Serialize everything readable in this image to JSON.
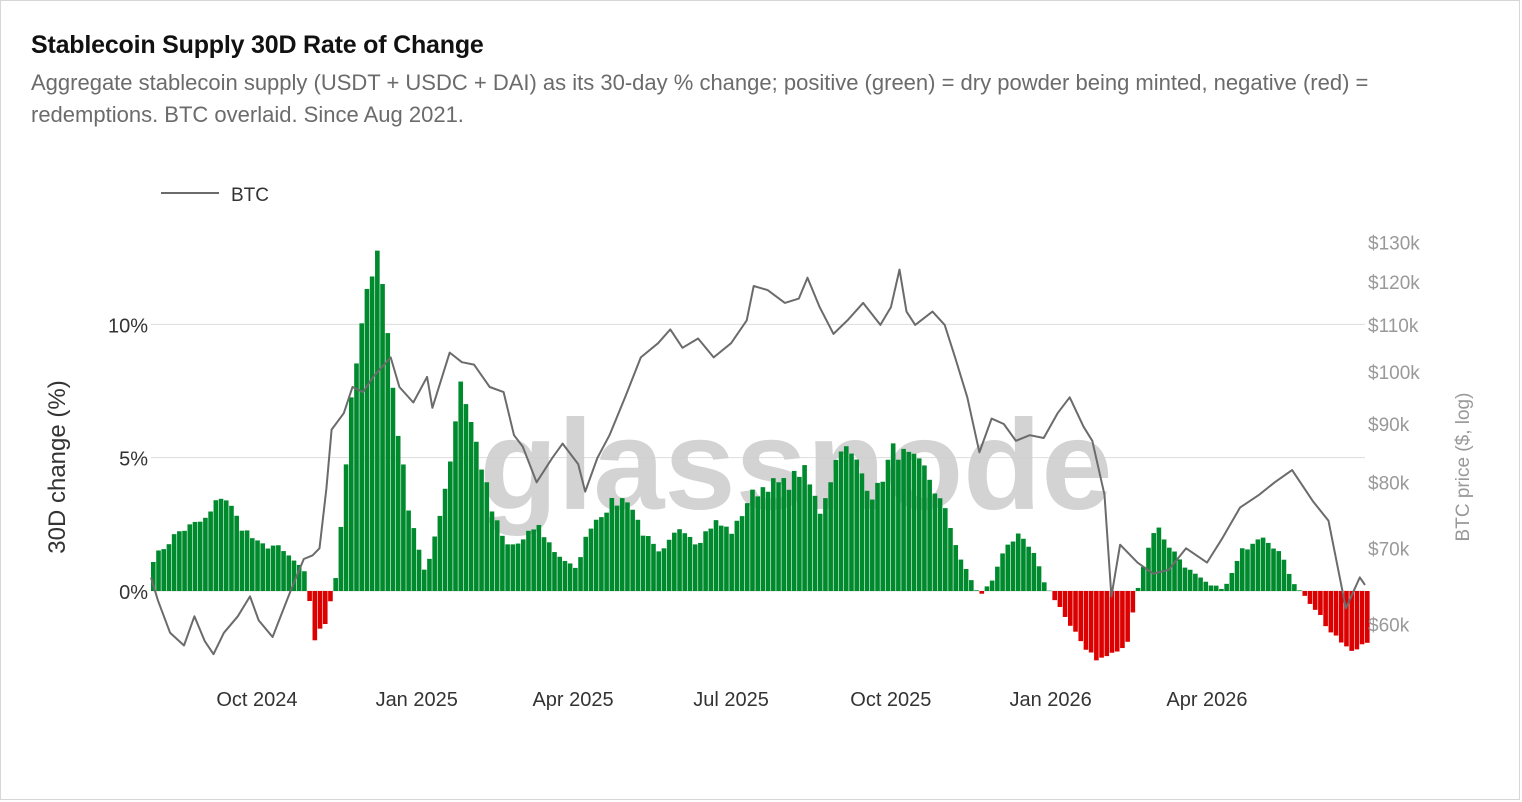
{
  "header": {
    "title": "Stablecoin Supply 30D Rate of Change",
    "subtitle": "Aggregate stablecoin supply (USDT + USDC + DAI) as its 30-day % change; positive (green) = dry powder being minted, negative (red) = redemptions. BTC overlaid. Since Aug 2021."
  },
  "watermark": "glassnode",
  "colors": {
    "positive": "#008a2e",
    "negative": "#dd0000",
    "btc_line": "#6b6b6b",
    "grid": "#dddddd",
    "axis_text": "#333333",
    "right_axis_text": "#999999"
  },
  "chart_data": {
    "type": "bar",
    "legend": {
      "position": "top-left",
      "entries": [
        "BTC"
      ]
    },
    "x_range": [
      "2024-08-01",
      "2026-07-01"
    ],
    "x_ticks": [
      {
        "label": "Oct 2024",
        "date": "2024-10-01"
      },
      {
        "label": "Jan 2025",
        "date": "2025-01-01"
      },
      {
        "label": "Apr 2025",
        "date": "2025-04-01"
      },
      {
        "label": "Jul 2025",
        "date": "2025-07-01"
      },
      {
        "label": "Oct 2025",
        "date": "2025-10-01"
      },
      {
        "label": "Jan 2026",
        "date": "2026-01-01"
      },
      {
        "label": "Apr 2026",
        "date": "2026-04-01"
      }
    ],
    "y_left": {
      "label": "30D change (%)",
      "ylim": [
        -2.7,
        13.5
      ],
      "ticks": [
        {
          "label": "0%",
          "value": 0
        },
        {
          "label": "5%",
          "value": 5
        },
        {
          "label": "10%",
          "value": 10
        }
      ],
      "grid": true
    },
    "y_right": {
      "label": "BTC price ($, log)",
      "scale": "log",
      "ylim": [
        55500,
        133000
      ],
      "ticks": [
        {
          "label": "$60k",
          "value": 60000
        },
        {
          "label": "$70k",
          "value": 70000
        },
        {
          "label": "$80k",
          "value": 80000
        },
        {
          "label": "$90k",
          "value": 90000
        },
        {
          "label": "$100k",
          "value": 100000
        },
        {
          "label": "$110k",
          "value": 110000
        },
        {
          "label": "$120k",
          "value": 120000
        },
        {
          "label": "$130k",
          "value": 130000
        }
      ]
    },
    "series": [
      {
        "name": "30D change (%)",
        "type": "bar",
        "x": [
          "2024-08-01",
          "2024-08-15",
          "2024-09-01",
          "2024-09-10",
          "2024-09-20",
          "2024-10-01",
          "2024-10-10",
          "2024-10-20",
          "2024-10-28",
          "2024-11-02",
          "2024-11-08",
          "2024-11-15",
          "2024-11-22",
          "2024-11-28",
          "2024-12-03",
          "2024-12-08",
          "2024-12-12",
          "2024-12-18",
          "2024-12-25",
          "2025-01-05",
          "2025-01-18",
          "2025-01-25",
          "2025-02-05",
          "2025-02-12",
          "2025-02-20",
          "2025-03-01",
          "2025-03-10",
          "2025-03-20",
          "2025-04-01",
          "2025-04-10",
          "2025-04-20",
          "2025-05-01",
          "2025-05-10",
          "2025-05-20",
          "2025-06-01",
          "2025-06-10",
          "2025-06-20",
          "2025-07-01",
          "2025-07-10",
          "2025-07-20",
          "2025-08-01",
          "2025-08-10",
          "2025-08-20",
          "2025-09-01",
          "2025-09-10",
          "2025-09-20",
          "2025-10-01",
          "2025-10-10",
          "2025-10-20",
          "2025-11-01",
          "2025-11-10",
          "2025-11-20",
          "2025-11-28",
          "2025-12-05",
          "2025-12-12",
          "2025-12-20",
          "2025-12-28",
          "2026-01-05",
          "2026-01-12",
          "2026-01-20",
          "2026-01-28",
          "2026-02-05",
          "2026-02-12",
          "2026-02-20",
          "2026-03-01",
          "2026-03-10",
          "2026-03-20",
          "2026-04-01",
          "2026-04-10",
          "2026-04-20",
          "2026-05-01",
          "2026-05-10",
          "2026-05-20",
          "2026-06-01",
          "2026-06-10",
          "2026-06-20",
          "2026-07-01"
        ],
        "values": [
          1.2,
          2.2,
          2.7,
          3.7,
          2.5,
          1.7,
          1.7,
          1.2,
          0.6,
          -1.8,
          -1.2,
          0.8,
          6.5,
          9.5,
          11.5,
          12.9,
          11.0,
          7.0,
          3.5,
          0.5,
          4.5,
          7.9,
          5.0,
          3.0,
          1.7,
          1.8,
          2.5,
          1.5,
          0.8,
          2.5,
          3.2,
          3.5,
          2.2,
          1.3,
          2.5,
          1.8,
          2.6,
          2.2,
          3.5,
          4.0,
          4.0,
          4.6,
          3.0,
          5.5,
          4.8,
          3.5,
          5.3,
          5.0,
          4.5,
          2.8,
          1.0,
          -0.2,
          0.5,
          1.8,
          2.0,
          1.5,
          0.2,
          -0.6,
          -1.5,
          -2.1,
          -2.6,
          -2.3,
          -2.2,
          0.5,
          2.5,
          1.6,
          0.8,
          0.2,
          0.1,
          1.5,
          2.2,
          1.6,
          0.3,
          -0.7,
          -1.6,
          -2.1,
          -2.1
        ]
      },
      {
        "name": "BTC",
        "type": "line",
        "x": [
          "2024-08-01",
          "2024-08-05",
          "2024-08-12",
          "2024-08-20",
          "2024-08-26",
          "2024-09-01",
          "2024-09-06",
          "2024-09-12",
          "2024-09-20",
          "2024-09-27",
          "2024-10-02",
          "2024-10-10",
          "2024-10-20",
          "2024-10-28",
          "2024-11-02",
          "2024-11-06",
          "2024-11-10",
          "2024-11-13",
          "2024-11-20",
          "2024-11-25",
          "2024-12-01",
          "2024-12-07",
          "2024-12-12",
          "2024-12-17",
          "2024-12-22",
          "2024-12-30",
          "2025-01-07",
          "2025-01-10",
          "2025-01-20",
          "2025-01-27",
          "2025-02-03",
          "2025-02-12",
          "2025-02-20",
          "2025-02-26",
          "2025-03-03",
          "2025-03-11",
          "2025-03-20",
          "2025-03-26",
          "2025-04-04",
          "2025-04-08",
          "2025-04-15",
          "2025-04-22",
          "2025-05-01",
          "2025-05-10",
          "2025-05-20",
          "2025-05-27",
          "2025-06-03",
          "2025-06-12",
          "2025-06-21",
          "2025-07-01",
          "2025-07-10",
          "2025-07-14",
          "2025-07-22",
          "2025-08-01",
          "2025-08-09",
          "2025-08-14",
          "2025-08-21",
          "2025-08-29",
          "2025-09-06",
          "2025-09-15",
          "2025-09-25",
          "2025-10-01",
          "2025-10-06",
          "2025-10-10",
          "2025-10-15",
          "2025-10-25",
          "2025-11-01",
          "2025-11-07",
          "2025-11-14",
          "2025-11-21",
          "2025-11-28",
          "2025-12-05",
          "2025-12-12",
          "2025-12-20",
          "2025-12-28",
          "2026-01-05",
          "2026-01-12",
          "2026-01-20",
          "2026-01-25",
          "2026-02-01",
          "2026-02-05",
          "2026-02-10",
          "2026-02-20",
          "2026-03-01",
          "2026-03-10",
          "2026-03-20",
          "2026-04-01",
          "2026-04-10",
          "2026-04-20",
          "2026-05-01",
          "2026-05-10",
          "2026-05-20",
          "2026-06-01",
          "2026-06-10",
          "2026-06-20",
          "2026-06-28",
          "2026-07-01"
        ],
        "values": [
          66000,
          63000,
          59000,
          57500,
          61000,
          58000,
          56500,
          59000,
          61000,
          63500,
          60500,
          58500,
          64000,
          68500,
          69000,
          70000,
          79000,
          89000,
          92000,
          97000,
          96000,
          99000,
          101000,
          103000,
          97000,
          94000,
          99000,
          93000,
          104000,
          102000,
          101500,
          97000,
          96000,
          88000,
          86000,
          80000,
          84000,
          86500,
          83000,
          78500,
          84000,
          88000,
          95000,
          103000,
          106000,
          109000,
          105000,
          107000,
          103000,
          106000,
          111000,
          119000,
          118000,
          115000,
          116000,
          121000,
          114000,
          108000,
          111000,
          115000,
          110000,
          114000,
          123000,
          113000,
          110000,
          113000,
          110000,
          103000,
          95000,
          85000,
          91000,
          90000,
          87000,
          88000,
          87500,
          92000,
          95000,
          89500,
          87000,
          78000,
          63500,
          70500,
          68000,
          66500,
          67000,
          70000,
          68000,
          71500,
          76000,
          78000,
          80000,
          82000,
          77000,
          74000,
          62000,
          66000,
          65000
        ]
      }
    ]
  }
}
